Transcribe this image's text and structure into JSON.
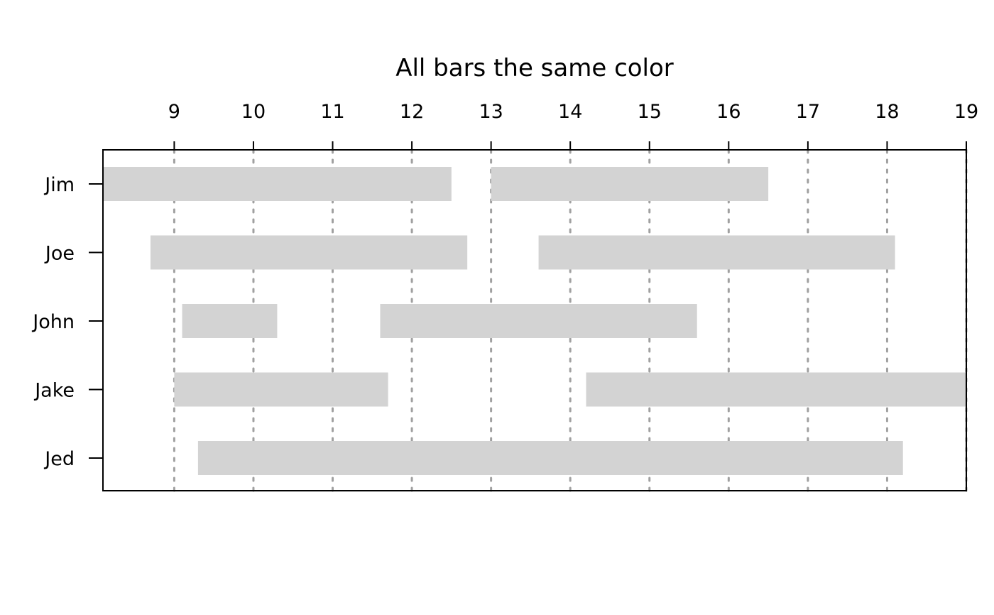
{
  "chart_data": {
    "type": "bar",
    "subtype": "gantt",
    "title": "All bars the same color",
    "xlabel": "",
    "ylabel": "",
    "xlim": [
      8.1,
      19
    ],
    "x_ticks": [
      9,
      10,
      11,
      12,
      13,
      14,
      15,
      16,
      17,
      18,
      19
    ],
    "x_axis_position": "top",
    "grid": true,
    "grid_style": "dotted vertical",
    "bar_color": "#d3d3d3",
    "grid_color": "#a0a0a0",
    "categories": [
      "Jim",
      "Joe",
      "John",
      "Jake",
      "Jed"
    ],
    "tasks": [
      {
        "label": "Jim",
        "intervals": [
          [
            8.1,
            12.5
          ],
          [
            13.0,
            16.5
          ]
        ]
      },
      {
        "label": "Joe",
        "intervals": [
          [
            8.7,
            12.7
          ],
          [
            13.6,
            18.1
          ]
        ]
      },
      {
        "label": "John",
        "intervals": [
          [
            9.1,
            10.3
          ],
          [
            11.6,
            15.6
          ]
        ]
      },
      {
        "label": "Jake",
        "intervals": [
          [
            9.0,
            11.7
          ],
          [
            14.2,
            19.0
          ]
        ]
      },
      {
        "label": "Jed",
        "intervals": [
          [
            9.3,
            18.2
          ]
        ]
      }
    ]
  }
}
